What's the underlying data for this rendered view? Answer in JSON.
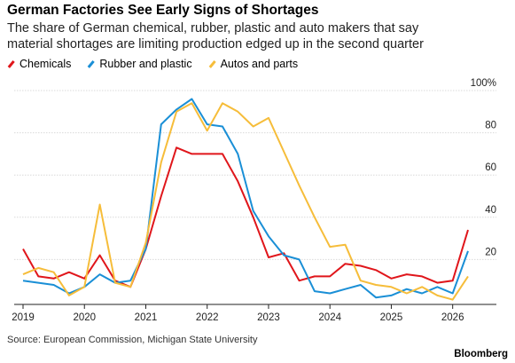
{
  "chart_data": {
    "type": "line",
    "title": "German Factories See Early Signs of Shortages",
    "subtitle": "The share of German chemical, rubber, plastic and auto makers that say material shortages are limiting production edged up in the second quarter",
    "source": "Source: European Commission, Michigan State University",
    "brand": "Bloomberg",
    "categories": [
      "2019",
      null,
      null,
      null,
      "2020",
      null,
      null,
      null,
      "2021",
      null,
      null,
      null,
      "2022",
      null,
      null,
      null,
      "2023",
      null,
      null,
      null,
      "2024",
      null,
      null,
      null,
      "2025",
      null,
      null,
      null,
      "2026",
      null
    ],
    "series": [
      {
        "name": "Chemicals",
        "color": "#e0161b",
        "values": [
          25,
          12,
          11,
          14,
          11,
          22,
          10,
          7,
          25,
          50,
          73,
          70,
          70,
          70,
          57,
          40,
          21,
          23,
          10,
          12,
          12,
          18,
          17,
          15,
          11,
          13,
          12,
          9,
          10,
          34
        ]
      },
      {
        "name": "Rubber and plastic",
        "color": "#1a8fd6",
        "values": [
          10,
          9,
          8,
          4,
          7,
          13,
          9,
          10,
          25,
          84,
          91,
          96,
          84,
          83,
          70,
          43,
          31,
          22,
          20,
          5,
          4,
          6,
          8,
          2,
          3,
          6,
          4,
          7,
          4,
          24
        ]
      },
      {
        "name": "Autos and parts",
        "color": "#f6bd3a",
        "values": [
          13,
          16,
          14,
          3,
          7,
          46,
          9,
          7,
          28,
          66,
          90,
          94,
          81,
          94,
          90,
          83,
          87,
          71,
          55,
          40,
          26,
          27,
          10,
          8,
          7,
          4,
          7,
          3,
          1,
          12
        ]
      }
    ],
    "ylim": [
      0,
      100
    ],
    "yticks": [
      20,
      40,
      60,
      80,
      {
        "value": 100,
        "label": "100%"
      }
    ],
    "grid": true
  }
}
